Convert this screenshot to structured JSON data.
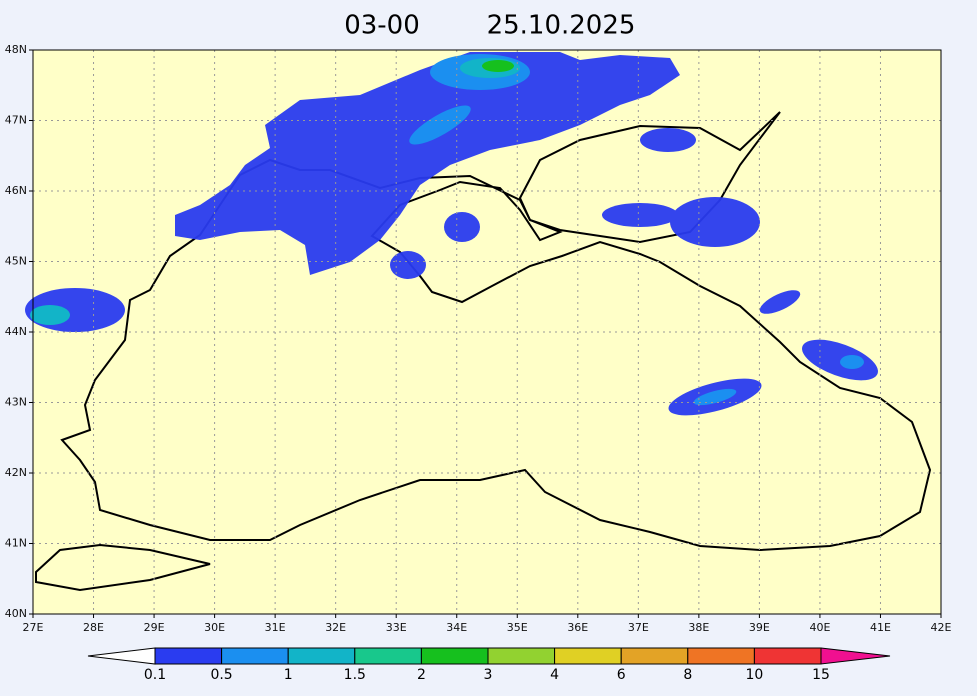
{
  "title": {
    "time": "03-00",
    "date": "25.10.2025"
  },
  "lat_labels": [
    "48N",
    "47N",
    "46N",
    "45N",
    "44N",
    "43N",
    "42N",
    "41N",
    "40N"
  ],
  "lon_labels": [
    "27E",
    "28E",
    "29E",
    "30E",
    "31E",
    "32E",
    "33E",
    "34E",
    "35E",
    "36E",
    "37E",
    "38E",
    "39E",
    "40E",
    "41E",
    "42E"
  ],
  "legend": {
    "labels": [
      "0.1",
      "0.5",
      "1",
      "1.5",
      "2",
      "3",
      "4",
      "6",
      "8",
      "10",
      "15"
    ],
    "colors": [
      "#ffffff",
      "#2a3cf0",
      "#1b8ff0",
      "#12b4c8",
      "#18c88c",
      "#16c01e",
      "#92d230",
      "#e0d024",
      "#e3a326",
      "#ef7424",
      "#ef3434",
      "#f01090"
    ]
  }
}
